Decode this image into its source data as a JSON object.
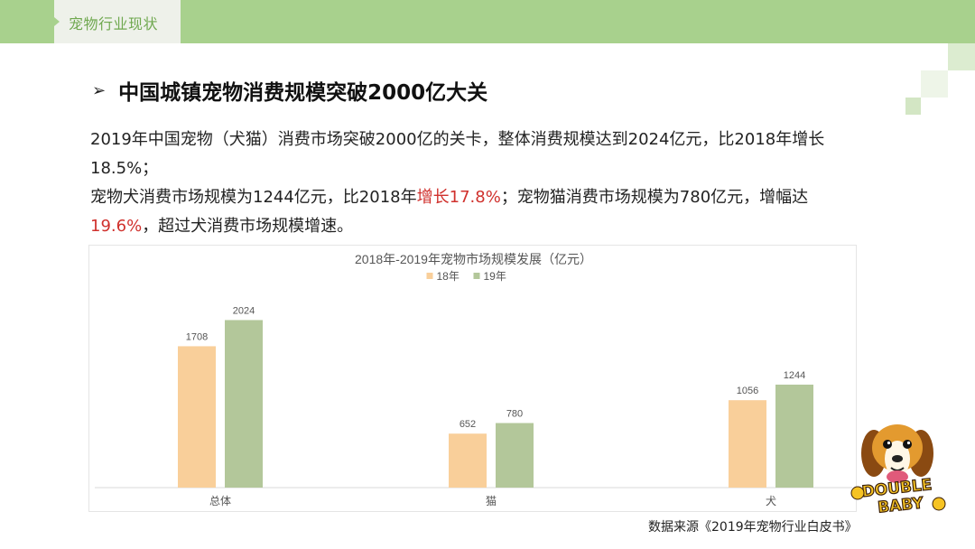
{
  "header": {
    "tab_label": "宠物行业现状"
  },
  "slide": {
    "title": "中国城镇宠物消费规模突破2000亿大关",
    "para1": "2019年中国宠物（犬猫）消费市场突破2000亿的关卡，整体消费规模达到2024亿元，比2018年增长18.5%；",
    "para2_a": "宠物犬消费市场规模为1244亿元，比2018年",
    "para2_red1": "增长17.8%",
    "para2_b": "；宠物猫消费市场规模为780亿元，增幅达",
    "para2_red2": "19.6%",
    "para2_c": "，超过犬消费市场规模增速。",
    "source": "数据来源《2019年宠物行业白皮书》"
  },
  "colors": {
    "accent_green": "#a8d18d",
    "series_18": "#f9cf9a",
    "series_19": "#b3c79a",
    "highlight_red": "#d0312d"
  },
  "icons": {
    "bullet": "arrow-bullet-icon",
    "mascot": "double-baby-dog-logo"
  },
  "mascot": {
    "line1": "DOUBLE",
    "line2": "BABY"
  },
  "chart_data": {
    "type": "bar",
    "title": "2018年-2019年宠物市场规模发展（亿元）",
    "categories": [
      "总体",
      "猫",
      "犬"
    ],
    "series": [
      {
        "name": "18年",
        "values": [
          1708,
          652,
          1056
        ],
        "color": "#f9cf9a"
      },
      {
        "name": "19年",
        "values": [
          2024,
          780,
          1244
        ],
        "color": "#b3c79a"
      }
    ],
    "ylim": [
      0,
      2400
    ],
    "grid": false,
    "legend": "top-center"
  }
}
